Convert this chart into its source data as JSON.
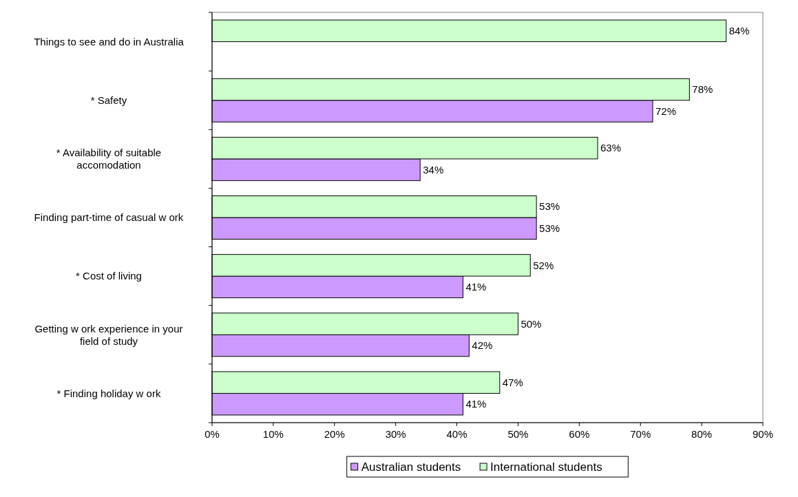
{
  "chart_data": {
    "type": "bar",
    "orientation": "horizontal",
    "categories": [
      "Things to see and do in Australia",
      "* Safety",
      "* Availability of suitable accomodation",
      "Finding part-time of casual w ork",
      "* Cost of living",
      "Getting w ork experience in your field of study",
      "* Finding holiday w ork"
    ],
    "series": [
      {
        "name": "Australian students",
        "color": "#cc99ff",
        "values": [
          null,
          72,
          34,
          53,
          41,
          42,
          41
        ],
        "value_labels": [
          null,
          "72%",
          "34%",
          "53%",
          "41%",
          "42%",
          "41%"
        ]
      },
      {
        "name": "International students",
        "color": "#ccffcc",
        "values": [
          84,
          78,
          63,
          53,
          52,
          50,
          47
        ],
        "value_labels": [
          "84%",
          "78%",
          "63%",
          "53%",
          "52%",
          "50%",
          "47%"
        ]
      }
    ],
    "xlim": [
      0,
      90
    ],
    "xticks": [
      {
        "value": 0,
        "label": "0%"
      },
      {
        "value": 10,
        "label": "10%"
      },
      {
        "value": 20,
        "label": "20%"
      },
      {
        "value": 30,
        "label": "30%"
      },
      {
        "value": 40,
        "label": "40%"
      },
      {
        "value": 50,
        "label": "50%"
      },
      {
        "value": 60,
        "label": "60%"
      },
      {
        "value": 70,
        "label": "70%"
      },
      {
        "value": 80,
        "label": "80%"
      },
      {
        "value": 90,
        "label": "90%"
      }
    ],
    "grid": false,
    "legend": "bottom"
  }
}
